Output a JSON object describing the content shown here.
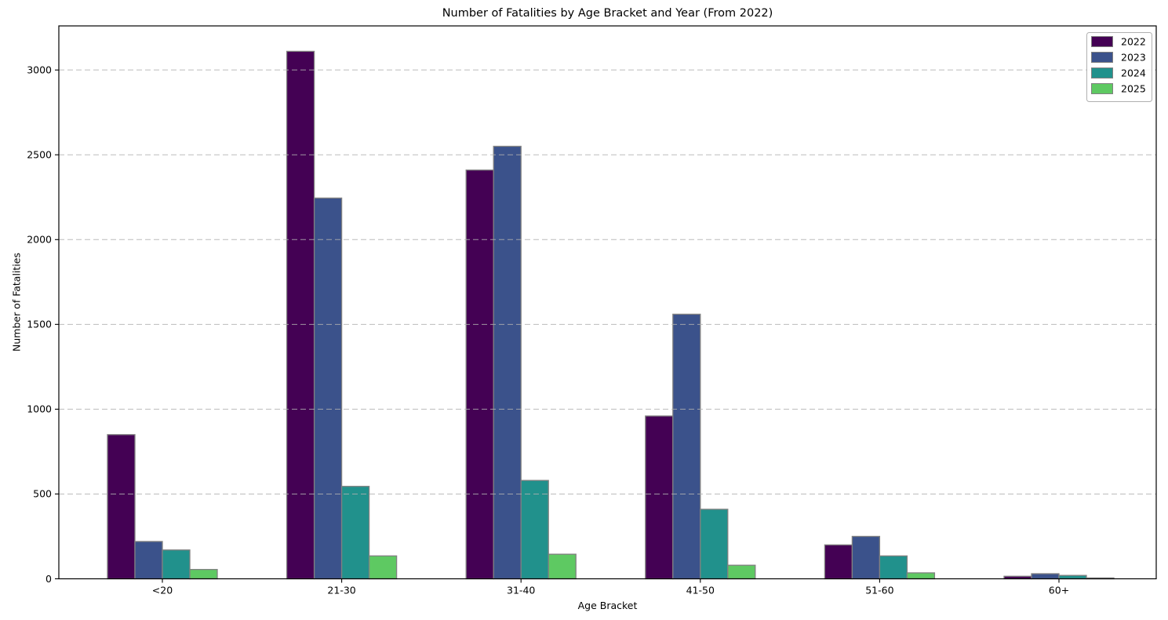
{
  "chart_data": {
    "type": "bar",
    "title": "Number of Fatalities by Age Bracket and Year (From 2022)",
    "xlabel": "Age Bracket",
    "ylabel": "Number of Fatalities",
    "categories": [
      "<20",
      "21-30",
      "31-40",
      "41-50",
      "51-60",
      "60+"
    ],
    "series": [
      {
        "name": "2022",
        "color": "#440154",
        "values": [
          850,
          3110,
          2410,
          960,
          200,
          15
        ]
      },
      {
        "name": "2023",
        "color": "#3b528b",
        "values": [
          220,
          2245,
          2550,
          1560,
          250,
          30
        ]
      },
      {
        "name": "2024",
        "color": "#21918c",
        "values": [
          170,
          545,
          580,
          410,
          135,
          20
        ]
      },
      {
        "name": "2025",
        "color": "#5ec962",
        "values": [
          55,
          135,
          145,
          80,
          35,
          5
        ]
      }
    ],
    "bar_edge_color": "#808080",
    "ylim": [
      0,
      3260
    ],
    "yticks": [
      0,
      500,
      1000,
      1500,
      2000,
      2500,
      3000
    ],
    "ytick_labels": [
      "0",
      "500",
      "1000",
      "1500",
      "2000",
      "2500",
      "3000"
    ],
    "grid": {
      "axis": "y",
      "style": "dashed",
      "color": "#b0b0b0",
      "above_bars": true
    },
    "legend": {
      "position": "upper right",
      "entries": [
        "2022",
        "2023",
        "2024",
        "2025"
      ]
    },
    "spine_color": "#000000",
    "background_color": "#ffffff"
  }
}
